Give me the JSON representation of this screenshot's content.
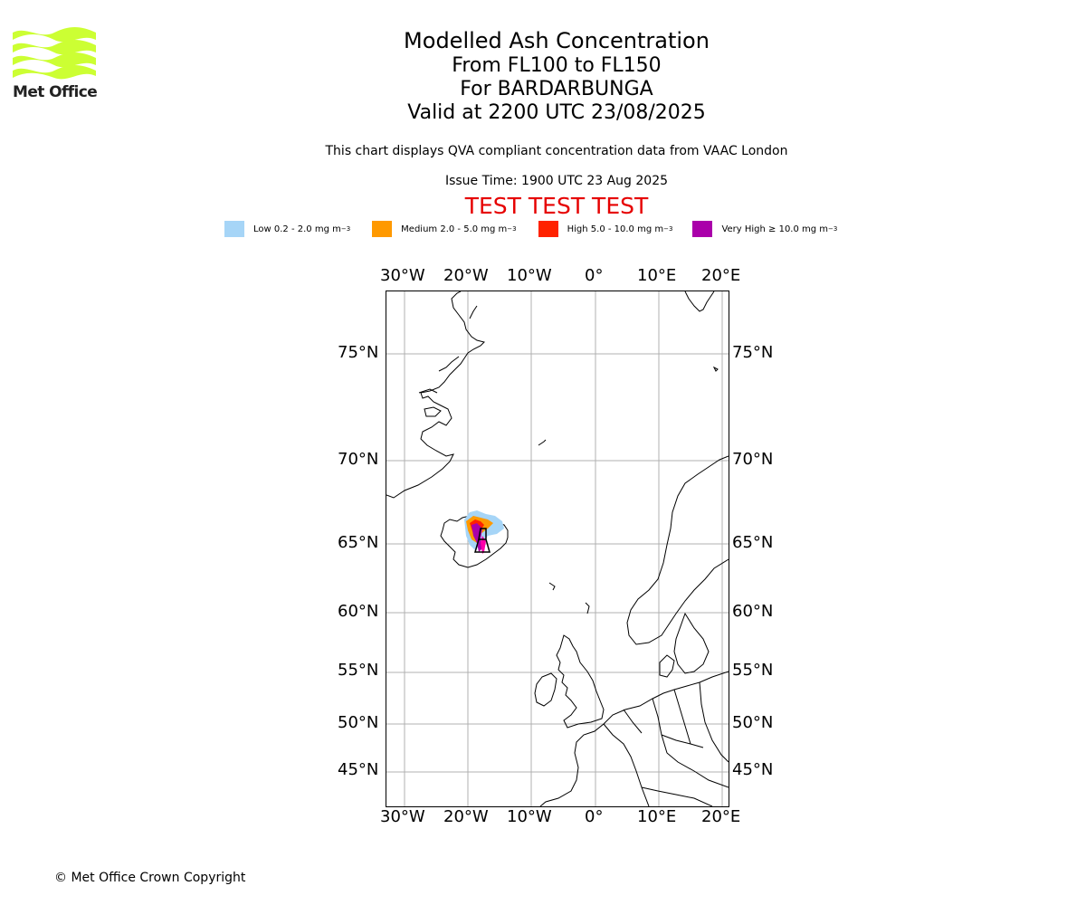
{
  "brand": {
    "name": "Met Office",
    "color": "#ccff33"
  },
  "title": {
    "line1": "Modelled Ash Concentration",
    "line2": "From FL100 to FL150",
    "line3": "For BARDARBUNGA",
    "line4": "Valid at 2200 UTC 23/08/2025"
  },
  "description": "This chart displays QVA compliant concentration data from VAAC London",
  "issue_time": "Issue Time: 1900 UTC 23 Aug 2025",
  "test_banner": "TEST TEST TEST",
  "legend": [
    {
      "label": "Low 0.2 - 2.0 mg m",
      "sup": "−3",
      "color": "#a6d5f7"
    },
    {
      "label": "Medium 2.0 - 5.0 mg m",
      "sup": "−3",
      "color": "#ff9900"
    },
    {
      "label": "High 5.0 - 10.0 mg m",
      "sup": "−3",
      "color": "#ff2200"
    },
    {
      "label": "Very High  ≥  10.0 mg m",
      "sup": "−3",
      "color": "#aa00aa"
    }
  ],
  "map": {
    "lon_labels": [
      "30°W",
      "20°W",
      "10°W",
      "0°",
      "10°E",
      "20°E"
    ],
    "lat_labels": [
      "75°N",
      "70°N",
      "65°N",
      "60°N",
      "55°N",
      "50°N",
      "45°N"
    ],
    "coastline_color": "#000000",
    "gridline_color": "#b0b0b0"
  },
  "copyright": "© Met Office Crown Copyright"
}
